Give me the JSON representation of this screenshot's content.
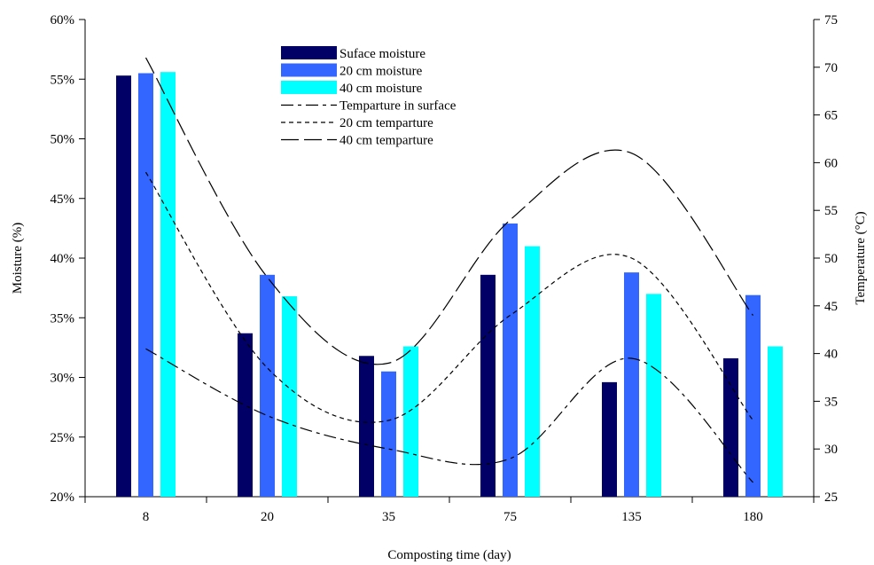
{
  "chart_data": {
    "type": "bar",
    "title": "",
    "xlabel": "Composting time (day)",
    "ylabel": "Moisture (%)",
    "y2label": "Temperature (°C)",
    "categories": [
      "8",
      "20",
      "35",
      "75",
      "135",
      "180"
    ],
    "ylim": [
      20,
      60
    ],
    "yticks": [
      "20%",
      "25%",
      "30%",
      "35%",
      "40%",
      "45%",
      "50%",
      "55%",
      "60%"
    ],
    "y2lim": [
      25,
      75
    ],
    "y2ticks": [
      "25",
      "30",
      "35",
      "40",
      "45",
      "50",
      "55",
      "60",
      "65",
      "70",
      "75"
    ],
    "legend_position": "top-center",
    "grid": false,
    "bar_series": [
      {
        "name": "Suface moisture",
        "color": "#000066",
        "values": [
          55.3,
          33.7,
          31.8,
          38.6,
          29.6,
          31.6
        ]
      },
      {
        "name": "20 cm moisture",
        "color": "#3366FF",
        "values": [
          55.5,
          38.6,
          30.5,
          42.9,
          38.8,
          36.9
        ]
      },
      {
        "name": "40 cm moisture",
        "color": "#00FFFF",
        "values": [
          55.6,
          36.8,
          32.6,
          41.0,
          37.0,
          32.6
        ]
      }
    ],
    "line_series": [
      {
        "name": "Temparture in surface",
        "dash": "long-short",
        "x": [
          8,
          20,
          35,
          75,
          135,
          180
        ],
        "values": [
          40.5,
          33.5,
          30.0,
          29.0,
          39.5,
          26.5
        ]
      },
      {
        "name": "20 cm temparture",
        "dash": "short",
        "x": [
          8,
          20,
          35,
          75,
          135,
          180
        ],
        "values": [
          59.0,
          38.5,
          33.0,
          44.0,
          50.0,
          33.0
        ]
      },
      {
        "name": "40 cm temparture",
        "dash": "long",
        "x": [
          8,
          20,
          35,
          75,
          135,
          180
        ],
        "values": [
          71.0,
          48.0,
          39.0,
          54.0,
          61.0,
          44.0
        ]
      }
    ]
  }
}
